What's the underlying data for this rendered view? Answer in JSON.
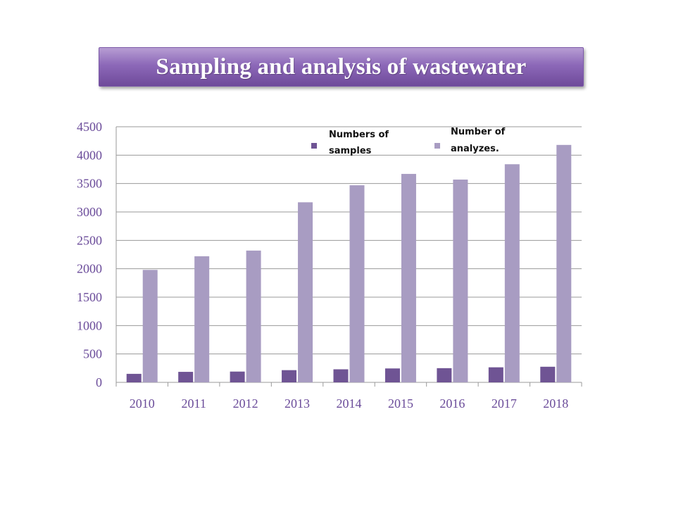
{
  "title": "Sampling and analysis of wastewater",
  "colors": {
    "banner_top": "#b79dd3",
    "banner_bottom": "#6f4a9a",
    "samples": "#6f5494",
    "analyzes": "#a89cc2",
    "tick_text": "#6b4c9a",
    "gridline": "#9a9a9a"
  },
  "chart_data": {
    "type": "bar",
    "categories": [
      "2010",
      "2011",
      "2012",
      "2013",
      "2014",
      "2015",
      "2016",
      "2017",
      "2018"
    ],
    "series": [
      {
        "name": "Numbers of samples",
        "values": [
          150,
          185,
          190,
          215,
          230,
          245,
          250,
          265,
          275
        ]
      },
      {
        "name": "Number of analyzes.",
        "values": [
          1980,
          2220,
          2320,
          3170,
          3470,
          3670,
          3570,
          3840,
          4180
        ]
      }
    ],
    "yticks": [
      "0",
      "500",
      "1000",
      "1500",
      "2000",
      "2500",
      "3000",
      "3500",
      "4000",
      "4500"
    ],
    "ylim": [
      0,
      4500
    ],
    "grid": true,
    "legend_position": "top-right",
    "legend": [
      {
        "line1": "Numbers of",
        "line2": "samples"
      },
      {
        "line1": "Number of",
        "line2": "analyzes."
      }
    ]
  }
}
